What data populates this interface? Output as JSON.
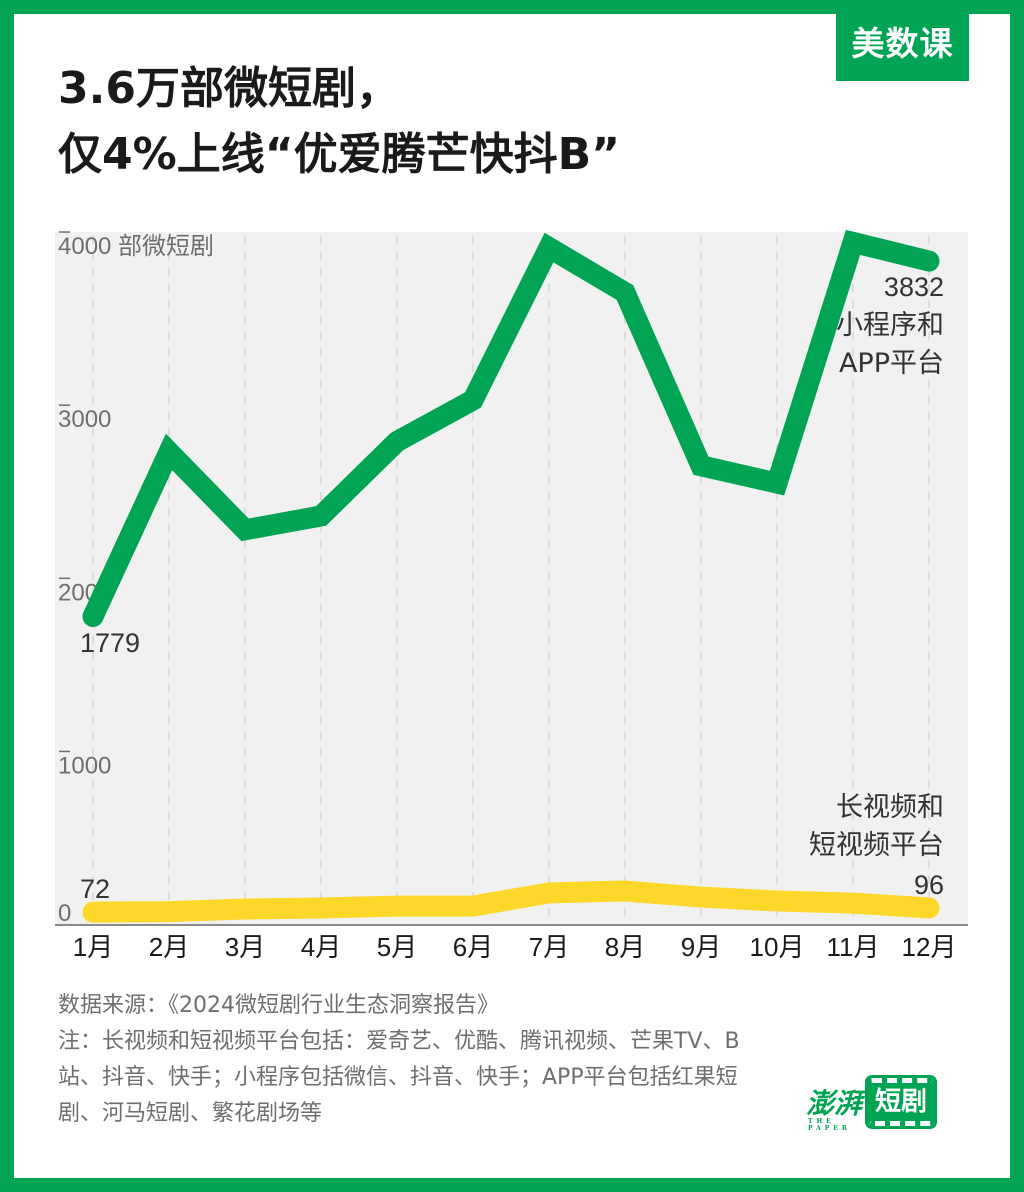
{
  "brand": {
    "label": "美数课"
  },
  "title": {
    "line1": "3.6万部微短剧，",
    "line2": "仅4%上线“优爱腾芒快抖B”"
  },
  "colors": {
    "frame": "#00a453",
    "miniapp_line": "#00a453",
    "video_line": "#fdd82a",
    "plot_bg": "#f1f1f1"
  },
  "chart_data": {
    "type": "line",
    "title": "3.6万部微短剧，仅4%上线“优爱腾芒快抖B”",
    "xlabel": "",
    "ylabel": "部微短剧",
    "ylim": [
      0,
      4000
    ],
    "yticks": [
      0,
      1000,
      2000,
      3000,
      4000
    ],
    "ytick_labels": [
      "0",
      "1000",
      "2000",
      "3000",
      "4000 部微短剧"
    ],
    "grid": "vertical dashed",
    "legend": "inline labels at right end of each series",
    "categories": [
      "1月",
      "2月",
      "3月",
      "4月",
      "5月",
      "6月",
      "7月",
      "8月",
      "9月",
      "10月",
      "11月",
      "12月"
    ],
    "series": [
      {
        "name": "小程序和APP平台",
        "label_lines": [
          "小程序和",
          "APP平台"
        ],
        "color": "#00a453",
        "values": [
          1779,
          2730,
          2280,
          2360,
          2790,
          3030,
          3910,
          3650,
          2650,
          2550,
          3940,
          3832
        ],
        "annotations": {
          "first": "1779",
          "last": "3832"
        }
      },
      {
        "name": "长视频和短视频平台",
        "label_lines": [
          "长视频和",
          "短视频平台"
        ],
        "color": "#fdd82a",
        "values": [
          72,
          75,
          90,
          96,
          107,
          107,
          183,
          194,
          159,
          136,
          124,
          96
        ],
        "annotations": {
          "first": "72",
          "last": "96"
        }
      }
    ]
  },
  "footer": {
    "source": "数据来源：《2024微短剧行业生态洞察报告》",
    "note": "注：长视频和短视频平台包括：爱奇艺、优酷、腾讯视频、芒果TV、B站、抖音、快手；小程序包括微信、抖音、快手；APP平台包括红果短剧、河马短剧、繁花剧场等"
  },
  "logo": {
    "name": "澎湃",
    "sub": "THE PAPER",
    "box": "短剧"
  }
}
